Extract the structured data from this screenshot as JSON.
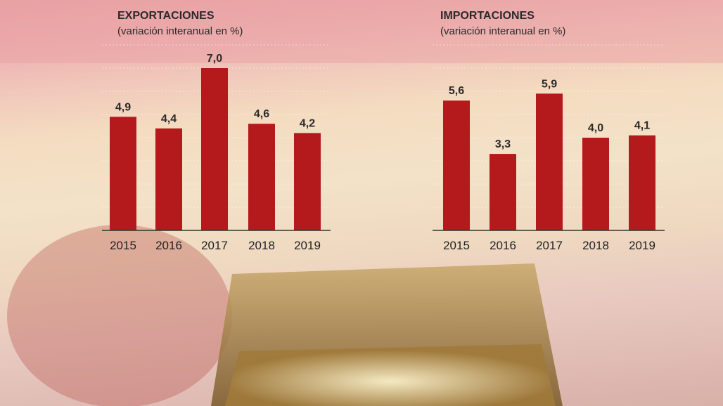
{
  "colors": {
    "bar": "#b4191c",
    "text": "#2a2a2a"
  },
  "chart_data": [
    {
      "type": "bar",
      "title": "EXPORTACIONES",
      "subtitle": "(variación interanual en %)",
      "categories": [
        "2015",
        "2016",
        "2017",
        "2018",
        "2019"
      ],
      "values": [
        4.9,
        4.4,
        7.0,
        4.6,
        4.2
      ],
      "value_labels": [
        "4,9",
        "4,4",
        "7,0",
        "4,6",
        "4,2"
      ],
      "ylim": [
        0,
        8
      ],
      "grid": true
    },
    {
      "type": "bar",
      "title": "IMPORTACIONES",
      "subtitle": "(variación interanual en %)",
      "categories": [
        "2015",
        "2016",
        "2017",
        "2018",
        "2019"
      ],
      "values": [
        5.6,
        3.3,
        5.9,
        4.0,
        4.1
      ],
      "value_labels": [
        "5,6",
        "3,3",
        "5,9",
        "4,0",
        "4,1"
      ],
      "ylim": [
        0,
        8
      ],
      "grid": true
    }
  ]
}
